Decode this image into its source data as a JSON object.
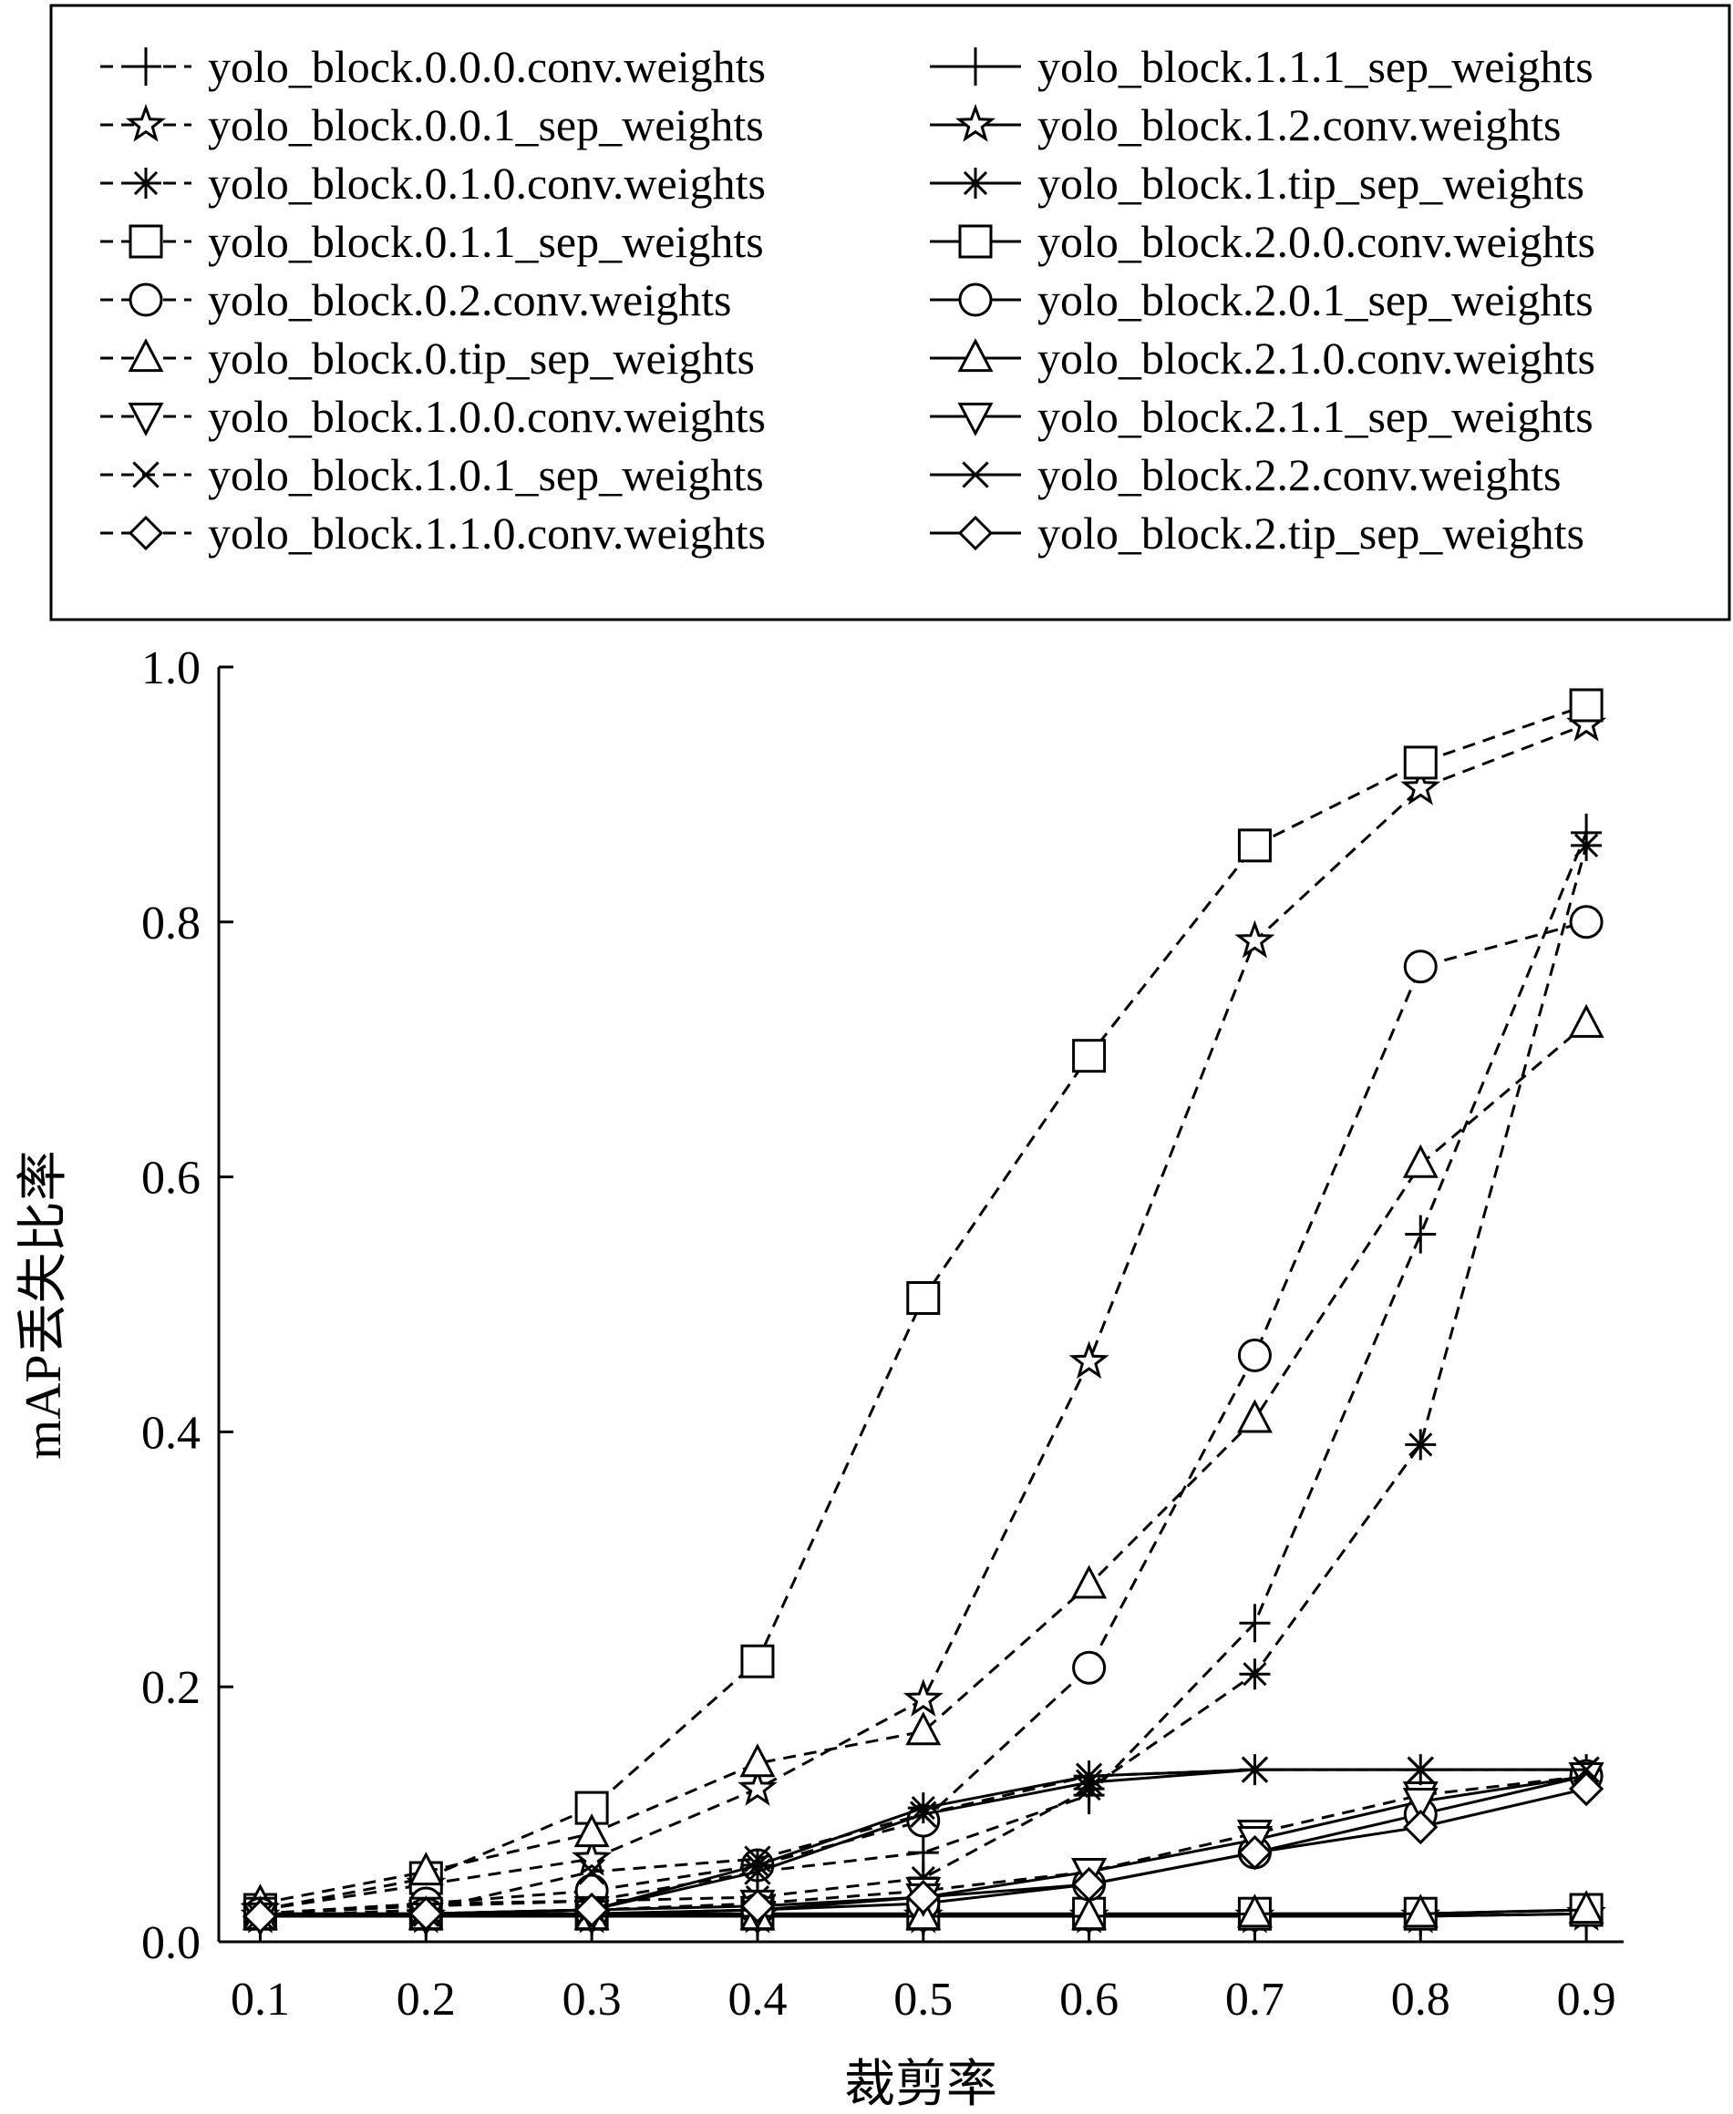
{
  "chart_data": {
    "type": "line",
    "title": "",
    "xlabel": "裁剪率",
    "ylabel": "mAP丢失比率",
    "xlim": [
      0.1,
      0.9
    ],
    "ylim": [
      0.0,
      1.0
    ],
    "x": [
      0.1,
      0.2,
      0.3,
      0.4,
      0.5,
      0.6,
      0.7,
      0.8,
      0.9
    ],
    "x_tick_labels": [
      "0.1",
      "0.2",
      "0.3",
      "0.4",
      "0.5",
      "0.6",
      "0.7",
      "0.8",
      "0.9"
    ],
    "y_ticks": [
      0.0,
      0.2,
      0.4,
      0.6,
      0.8,
      1.0
    ],
    "y_tick_labels": [
      "0.0",
      "0.2",
      "0.4",
      "0.6",
      "0.8",
      "1.0"
    ],
    "grid": false,
    "legend_placement": "top, two columns, boxed",
    "series": [
      {
        "name": "yolo_block.0.0.0.conv.weights",
        "marker": "plus",
        "line": "dashed",
        "values": [
          0.022,
          0.03,
          0.032,
          0.055,
          0.07,
          0.115,
          0.25,
          0.555,
          0.87
        ]
      },
      {
        "name": "yolo_block.0.0.1_sep_weights",
        "marker": "star",
        "line": "dashed",
        "values": [
          0.025,
          0.045,
          0.065,
          0.12,
          0.19,
          0.455,
          0.785,
          0.905,
          0.955
        ]
      },
      {
        "name": "yolo_block.0.1.0.conv.weights",
        "marker": "asterisk",
        "line": "dashed",
        "values": [
          0.022,
          0.028,
          0.032,
          0.035,
          0.05,
          0.12,
          0.21,
          0.39,
          0.86
        ]
      },
      {
        "name": "yolo_block.0.1.1_sep_weights",
        "marker": "square",
        "line": "dashed",
        "values": [
          0.025,
          0.05,
          0.105,
          0.22,
          0.505,
          0.695,
          0.86,
          0.925,
          0.97
        ]
      },
      {
        "name": "yolo_block.0.2.conv.weights",
        "marker": "circle",
        "line": "dashed",
        "values": [
          0.022,
          0.03,
          0.04,
          0.06,
          0.095,
          0.215,
          0.46,
          0.765,
          0.8
        ]
      },
      {
        "name": "yolo_block.0.tip_sep_weights",
        "marker": "triangle-up",
        "line": "dashed",
        "values": [
          0.03,
          0.055,
          0.085,
          0.14,
          0.165,
          0.28,
          0.41,
          0.61,
          0.72
        ]
      },
      {
        "name": "yolo_block.1.0.0.conv.weights",
        "marker": "triangle-down",
        "line": "dashed",
        "values": [
          0.02,
          0.022,
          0.025,
          0.03,
          0.04,
          0.055,
          0.085,
          0.115,
          0.13
        ]
      },
      {
        "name": "yolo_block.1.0.1_sep_weights",
        "marker": "x",
        "line": "dashed",
        "values": [
          0.02,
          0.025,
          0.055,
          0.065,
          0.1,
          0.13,
          0.135,
          0.135,
          0.135
        ]
      },
      {
        "name": "yolo_block.1.1.0.conv.weights",
        "marker": "diamond",
        "line": "dashed",
        "values": [
          0.02,
          0.02,
          0.02,
          0.02,
          0.02,
          0.02,
          0.02,
          0.022,
          0.025
        ]
      },
      {
        "name": "yolo_block.1.1.1_sep_weights",
        "marker": "plus",
        "line": "solid",
        "values": [
          0.02,
          0.02,
          0.02,
          0.02,
          0.02,
          0.02,
          0.02,
          0.02,
          0.022
        ]
      },
      {
        "name": "yolo_block.1.2.conv.weights",
        "marker": "star",
        "line": "solid",
        "values": [
          0.02,
          0.02,
          0.02,
          0.02,
          0.02,
          0.02,
          0.02,
          0.02,
          0.022
        ]
      },
      {
        "name": "yolo_block.1.tip_sep_weights",
        "marker": "asterisk",
        "line": "solid",
        "values": [
          0.02,
          0.022,
          0.025,
          0.06,
          0.105,
          0.13,
          0.135,
          0.135,
          0.135
        ]
      },
      {
        "name": "yolo_block.2.0.0.conv.weights",
        "marker": "square",
        "line": "solid",
        "values": [
          0.022,
          0.022,
          0.022,
          0.022,
          0.022,
          0.022,
          0.022,
          0.022,
          0.025
        ]
      },
      {
        "name": "yolo_block.2.0.1_sep_weights",
        "marker": "circle",
        "line": "solid",
        "values": [
          0.022,
          0.022,
          0.022,
          0.025,
          0.03,
          0.045,
          0.07,
          0.1,
          0.13
        ]
      },
      {
        "name": "yolo_block.2.1.0.conv.weights",
        "marker": "triangle-up",
        "line": "solid",
        "values": [
          0.02,
          0.02,
          0.02,
          0.02,
          0.02,
          0.02,
          0.022,
          0.022,
          0.025
        ]
      },
      {
        "name": "yolo_block.2.1.1_sep_weights",
        "marker": "triangle-down",
        "line": "solid",
        "values": [
          0.02,
          0.02,
          0.022,
          0.025,
          0.035,
          0.055,
          0.08,
          0.11,
          0.13
        ]
      },
      {
        "name": "yolo_block.2.2.conv.weights",
        "marker": "x",
        "line": "solid",
        "values": [
          0.02,
          0.022,
          0.025,
          0.055,
          0.1,
          0.125,
          0.135,
          0.135,
          0.135
        ]
      },
      {
        "name": "yolo_block.2.tip_sep_weights",
        "marker": "diamond",
        "line": "solid",
        "values": [
          0.02,
          0.022,
          0.025,
          0.028,
          0.035,
          0.045,
          0.07,
          0.09,
          0.12
        ]
      }
    ]
  }
}
